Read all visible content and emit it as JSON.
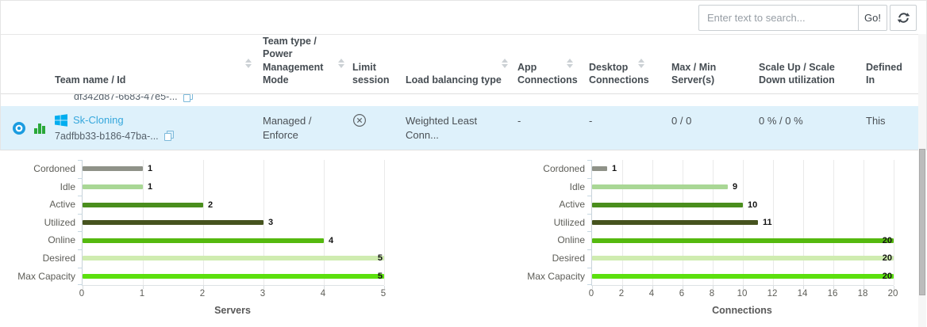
{
  "search": {
    "placeholder": "Enter text to search...",
    "go_label": "Go!"
  },
  "table": {
    "columns": [
      {
        "label": "Team name / Id",
        "sortable": true
      },
      {
        "label": "Team type / Power Management Mode",
        "sortable": true
      },
      {
        "label": "Limit session",
        "sortable": false
      },
      {
        "label": "Load balancing type",
        "sortable": true
      },
      {
        "label": "App Connections",
        "sortable": true
      },
      {
        "label": "Desktop Connections",
        "sortable": true
      },
      {
        "label": "Max / Min Server(s)",
        "sortable": false
      },
      {
        "label": "Scale Up / Scale Down utilization",
        "sortable": false
      },
      {
        "label": "Defined In",
        "sortable": false
      }
    ],
    "partial_row": {
      "id_text": "df342d87-6683-47e5-..."
    },
    "selected_row": {
      "team_name": "Sk-Cloning",
      "id_text": "7adfbb33-b186-47ba-...",
      "team_type": "Managed / Enforce",
      "load_balancing_type": "Weighted Least Conn...",
      "app_connections": "-",
      "desktop_connections": "-",
      "max_min_servers": "0 / 0",
      "scale_utilization": "0 % / 0 %",
      "defined_in": "This"
    }
  },
  "colors": {
    "selected_row_bg": "#def1fb",
    "team_link": "#35a7dc",
    "windows_logo": "#00adef",
    "status_donut": "#1b9ce0",
    "chart_bars_icon": "#2aa839"
  },
  "chart_data": [
    {
      "type": "bar",
      "orientation": "horizontal",
      "categories": [
        "Cordoned",
        "Idle",
        "Active",
        "Utilized",
        "Online",
        "Desired",
        "Max Capacity"
      ],
      "values": [
        1,
        1,
        2,
        3,
        4,
        5,
        5
      ],
      "xlabel": "Servers",
      "xlim": [
        0,
        5
      ],
      "xticks": [
        0,
        1,
        2,
        3,
        4,
        5
      ],
      "grid": true,
      "bar_colors": [
        "#8f9288",
        "#a9d795",
        "#4a8e1d",
        "#46531e",
        "#55b90f",
        "#cfecb0",
        "#5ce00e"
      ]
    },
    {
      "type": "bar",
      "orientation": "horizontal",
      "categories": [
        "Cordoned",
        "Idle",
        "Active",
        "Utilized",
        "Online",
        "Desired",
        "Max Capacity"
      ],
      "values": [
        1,
        9,
        10,
        11,
        20,
        20,
        20
      ],
      "xlabel": "Connections",
      "xlim": [
        0,
        20
      ],
      "xticks": [
        0,
        2,
        4,
        6,
        8,
        10,
        12,
        14,
        16,
        18,
        20
      ],
      "grid": true,
      "bar_colors": [
        "#8f9288",
        "#a9d795",
        "#4a8e1d",
        "#46531e",
        "#55b90f",
        "#cfecb0",
        "#5ce00e"
      ]
    }
  ]
}
